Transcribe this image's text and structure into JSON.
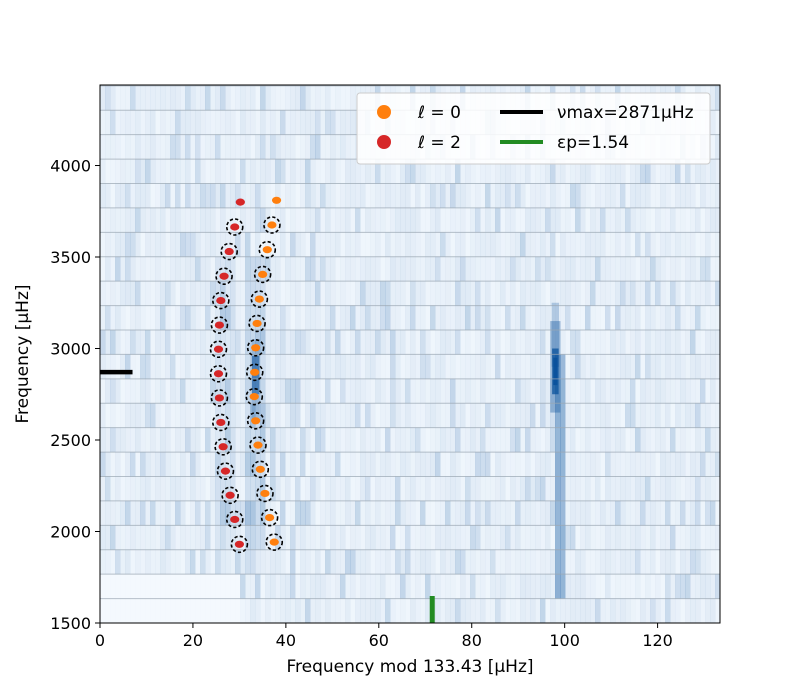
{
  "chart_data": {
    "type": "scatter",
    "title": "",
    "xlabel": "Frequency mod 133.43 [μHz]",
    "ylabel": "Frequency [μHz]",
    "xlim": [
      0,
      133.43
    ],
    "ylim": [
      1500,
      4440
    ],
    "xticks": [
      0,
      20,
      40,
      60,
      80,
      100,
      120
    ],
    "yticks": [
      1500,
      2000,
      2500,
      3000,
      3500,
      4000
    ],
    "xtick_labels": [
      "0",
      "20",
      "40",
      "60",
      "80",
      "100",
      "120"
    ],
    "ytick_labels": [
      "1500",
      "2000",
      "2500",
      "3000",
      "3500",
      "4000"
    ],
    "grid": false,
    "legend_position": "top-right",
    "legend": {
      "l0": "ℓ = 0",
      "l2": "ℓ = 2",
      "numax": "νmax=2871μHz",
      "epsp": "εp=1.54"
    },
    "colors": {
      "l0": "#ff7f0e",
      "l2": "#d62728",
      "numax": "#000000",
      "epsp": "#228b22",
      "heat": "#08519c"
    },
    "numax_value": 2871,
    "epsilon_p_x": 71.5,
    "series": [
      {
        "name": "ℓ = 0",
        "x": [
          37.5,
          36.5,
          35.5,
          34.5,
          34.0,
          33.5,
          33.2,
          33.3,
          33.5,
          33.8,
          34.3,
          35.0,
          36.0,
          37.0,
          38.0
        ],
        "y": [
          1942,
          2076,
          2208,
          2340,
          2472,
          2605,
          2737,
          2870,
          3004,
          3137,
          3270,
          3405,
          3540,
          3675,
          3810
        ],
        "circled": [
          true,
          true,
          true,
          true,
          true,
          true,
          true,
          true,
          true,
          true,
          true,
          true,
          true,
          true,
          false
        ]
      },
      {
        "name": "ℓ = 2",
        "x": [
          30.0,
          29.0,
          28.0,
          27.0,
          26.5,
          26.0,
          25.7,
          25.5,
          25.5,
          25.7,
          26.0,
          26.7,
          27.8,
          29.0,
          30.2
        ],
        "y": [
          1930,
          2066,
          2198,
          2330,
          2463,
          2596,
          2730,
          2862,
          2996,
          3128,
          3262,
          3395,
          3530,
          3664,
          3800
        ],
        "circled": [
          true,
          true,
          true,
          true,
          true,
          true,
          true,
          true,
          true,
          true,
          true,
          true,
          true,
          true,
          false
        ]
      }
    ]
  }
}
